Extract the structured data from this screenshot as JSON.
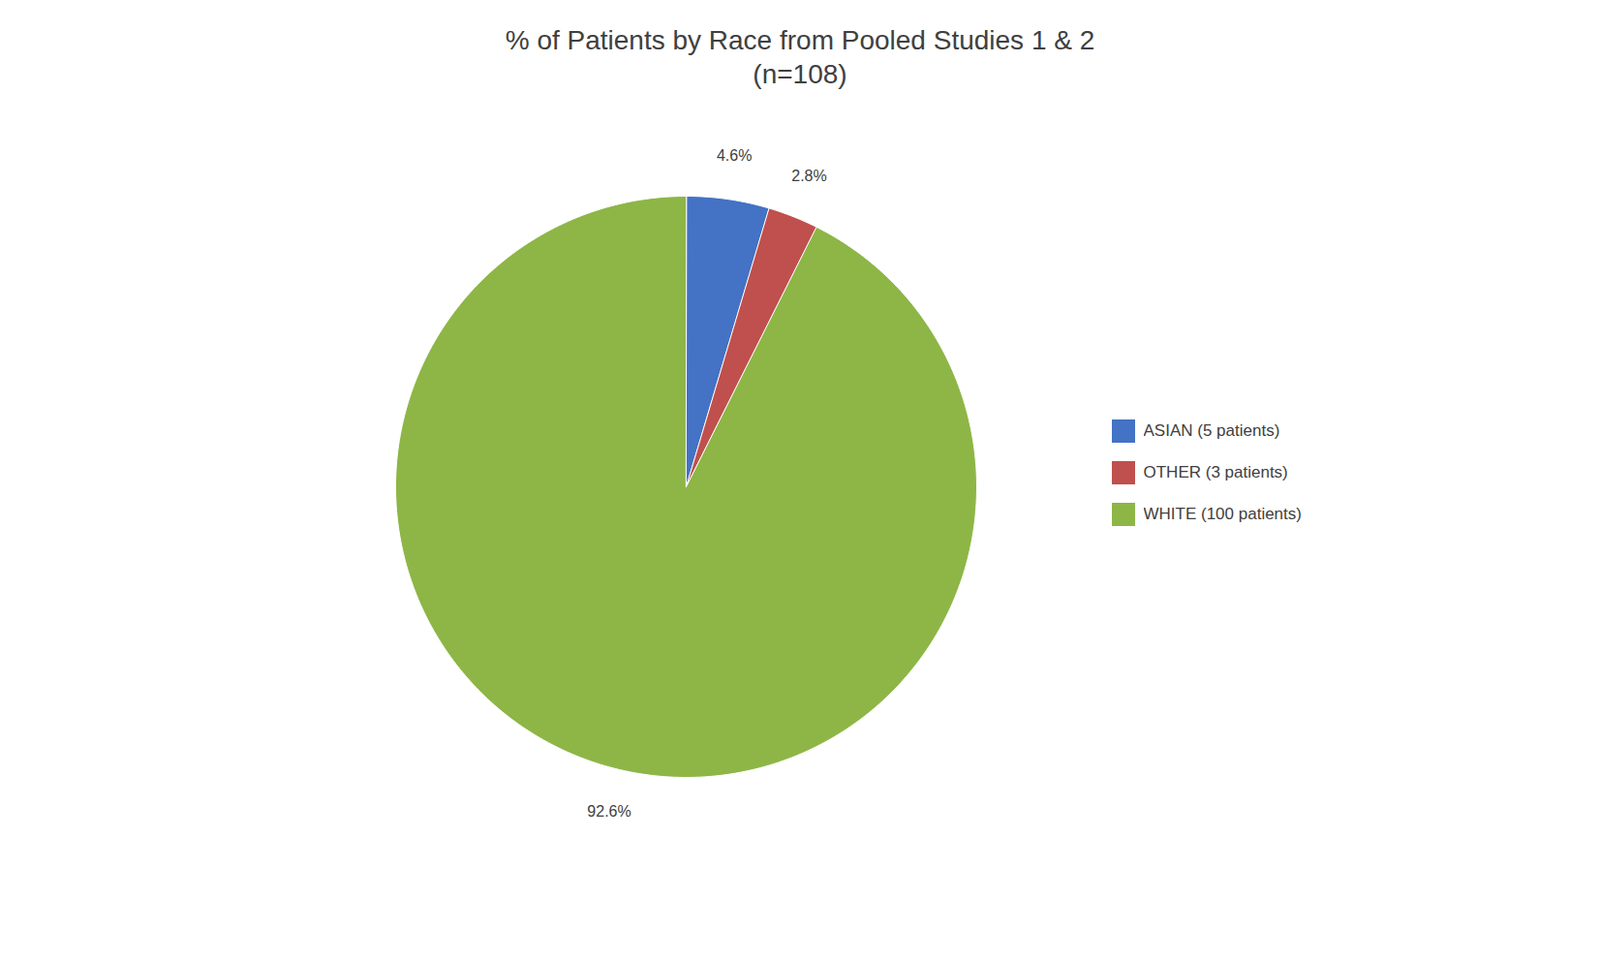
{
  "chart_data": {
    "type": "pie",
    "title": "% of Patients by Race from Pooled Studies 1 & 2\n(n=108)",
    "categories": [
      "ASIAN (5 patients)",
      "OTHER (3 patients)",
      "WHITE (100 patients)"
    ],
    "values": [
      4.6,
      2.8,
      92.6
    ],
    "value_labels": [
      "4.6%",
      "2.8%",
      "92.6%"
    ],
    "colors": [
      "#4472C4",
      "#C0504D",
      "#8DB646"
    ],
    "data_labels": true,
    "legend": "right"
  }
}
